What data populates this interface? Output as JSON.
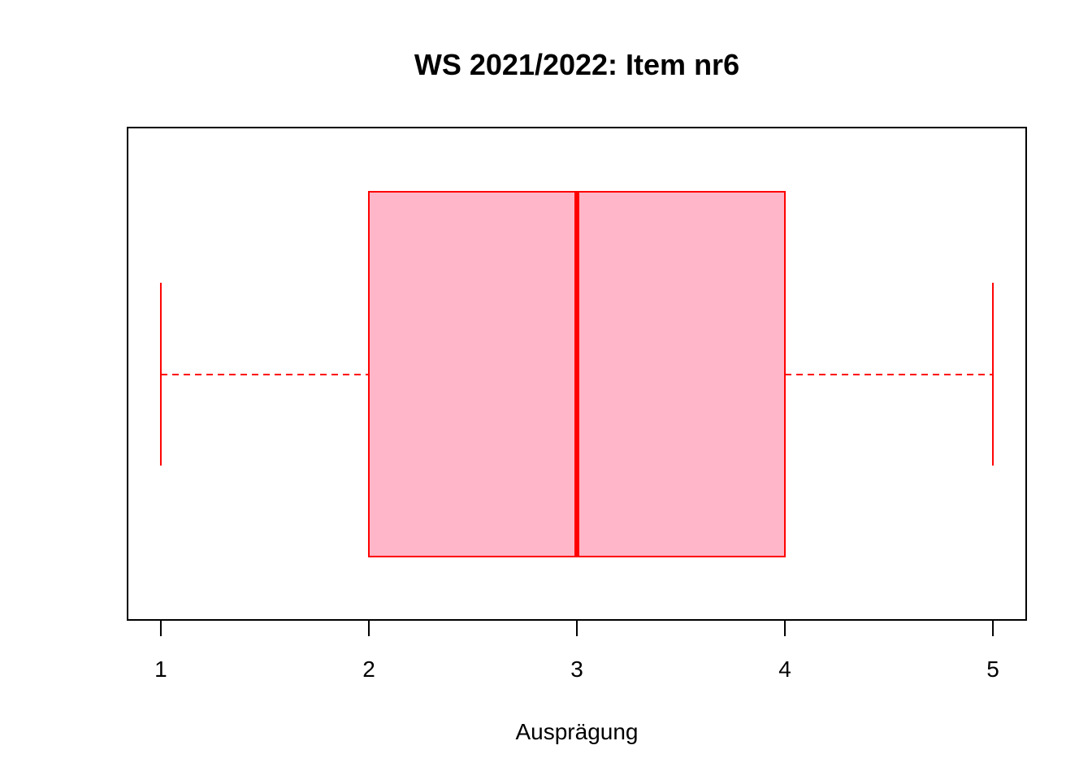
{
  "chart_data": {
    "type": "boxplot",
    "orientation": "horizontal",
    "title": "WS 2021/2022: Item nr6",
    "xlabel": "Ausprägung",
    "ylabel": "",
    "xlim": [
      0.84,
      5.16
    ],
    "x_ticks": [
      1,
      2,
      3,
      4,
      5
    ],
    "x_tick_labels": [
      "1",
      "2",
      "3",
      "4",
      "5"
    ],
    "box": {
      "min": 1,
      "q1": 2,
      "median": 3,
      "q3": 4,
      "max": 5
    },
    "colors": {
      "box_fill": "#FFB6C8",
      "box_stroke": "#FF0000",
      "frame": "#000000"
    },
    "grid": false,
    "legend": "none"
  }
}
